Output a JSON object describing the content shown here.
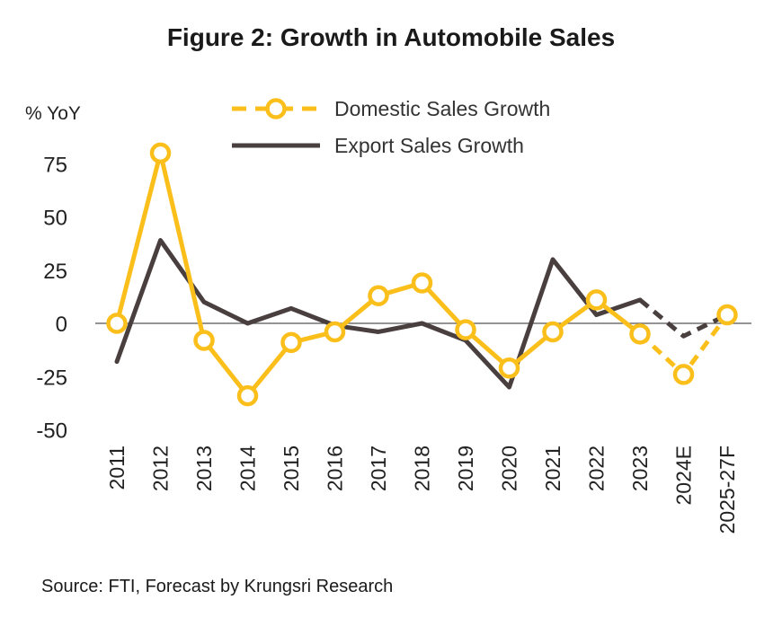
{
  "chart_data": {
    "type": "line",
    "title": "Figure 2: Growth in Automobile Sales",
    "ylabel": "% YoY",
    "ylim": [
      -50,
      80
    ],
    "yticks": [
      75,
      50,
      25,
      0,
      -25,
      -50
    ],
    "categories": [
      "2011",
      "2012",
      "2013",
      "2014",
      "2015",
      "2016",
      "2017",
      "2018",
      "2019",
      "2020",
      "2021",
      "2022",
      "2023",
      "2024E",
      "2025-27F"
    ],
    "forecast_start_index": 12,
    "legend_position": "top",
    "grid": false,
    "series": [
      {
        "name": "Domestic Sales Growth",
        "color": "#FBBF1C",
        "style": "solid-with-circle-markers, dashed for forecast",
        "values": [
          0,
          80,
          -8,
          -34,
          -9,
          -4,
          13,
          19,
          -3,
          -21,
          -4,
          11,
          -5,
          -24,
          4
        ]
      },
      {
        "name": "Export Sales Growth",
        "color": "#4A3F3F",
        "style": "solid, dashed for forecast",
        "values": [
          -18,
          39,
          10,
          0,
          7,
          -1,
          -4,
          0,
          -8,
          -30,
          30,
          4,
          11,
          -6,
          4
        ]
      }
    ]
  },
  "source": "Source: FTI, Forecast by Krungsri Research"
}
